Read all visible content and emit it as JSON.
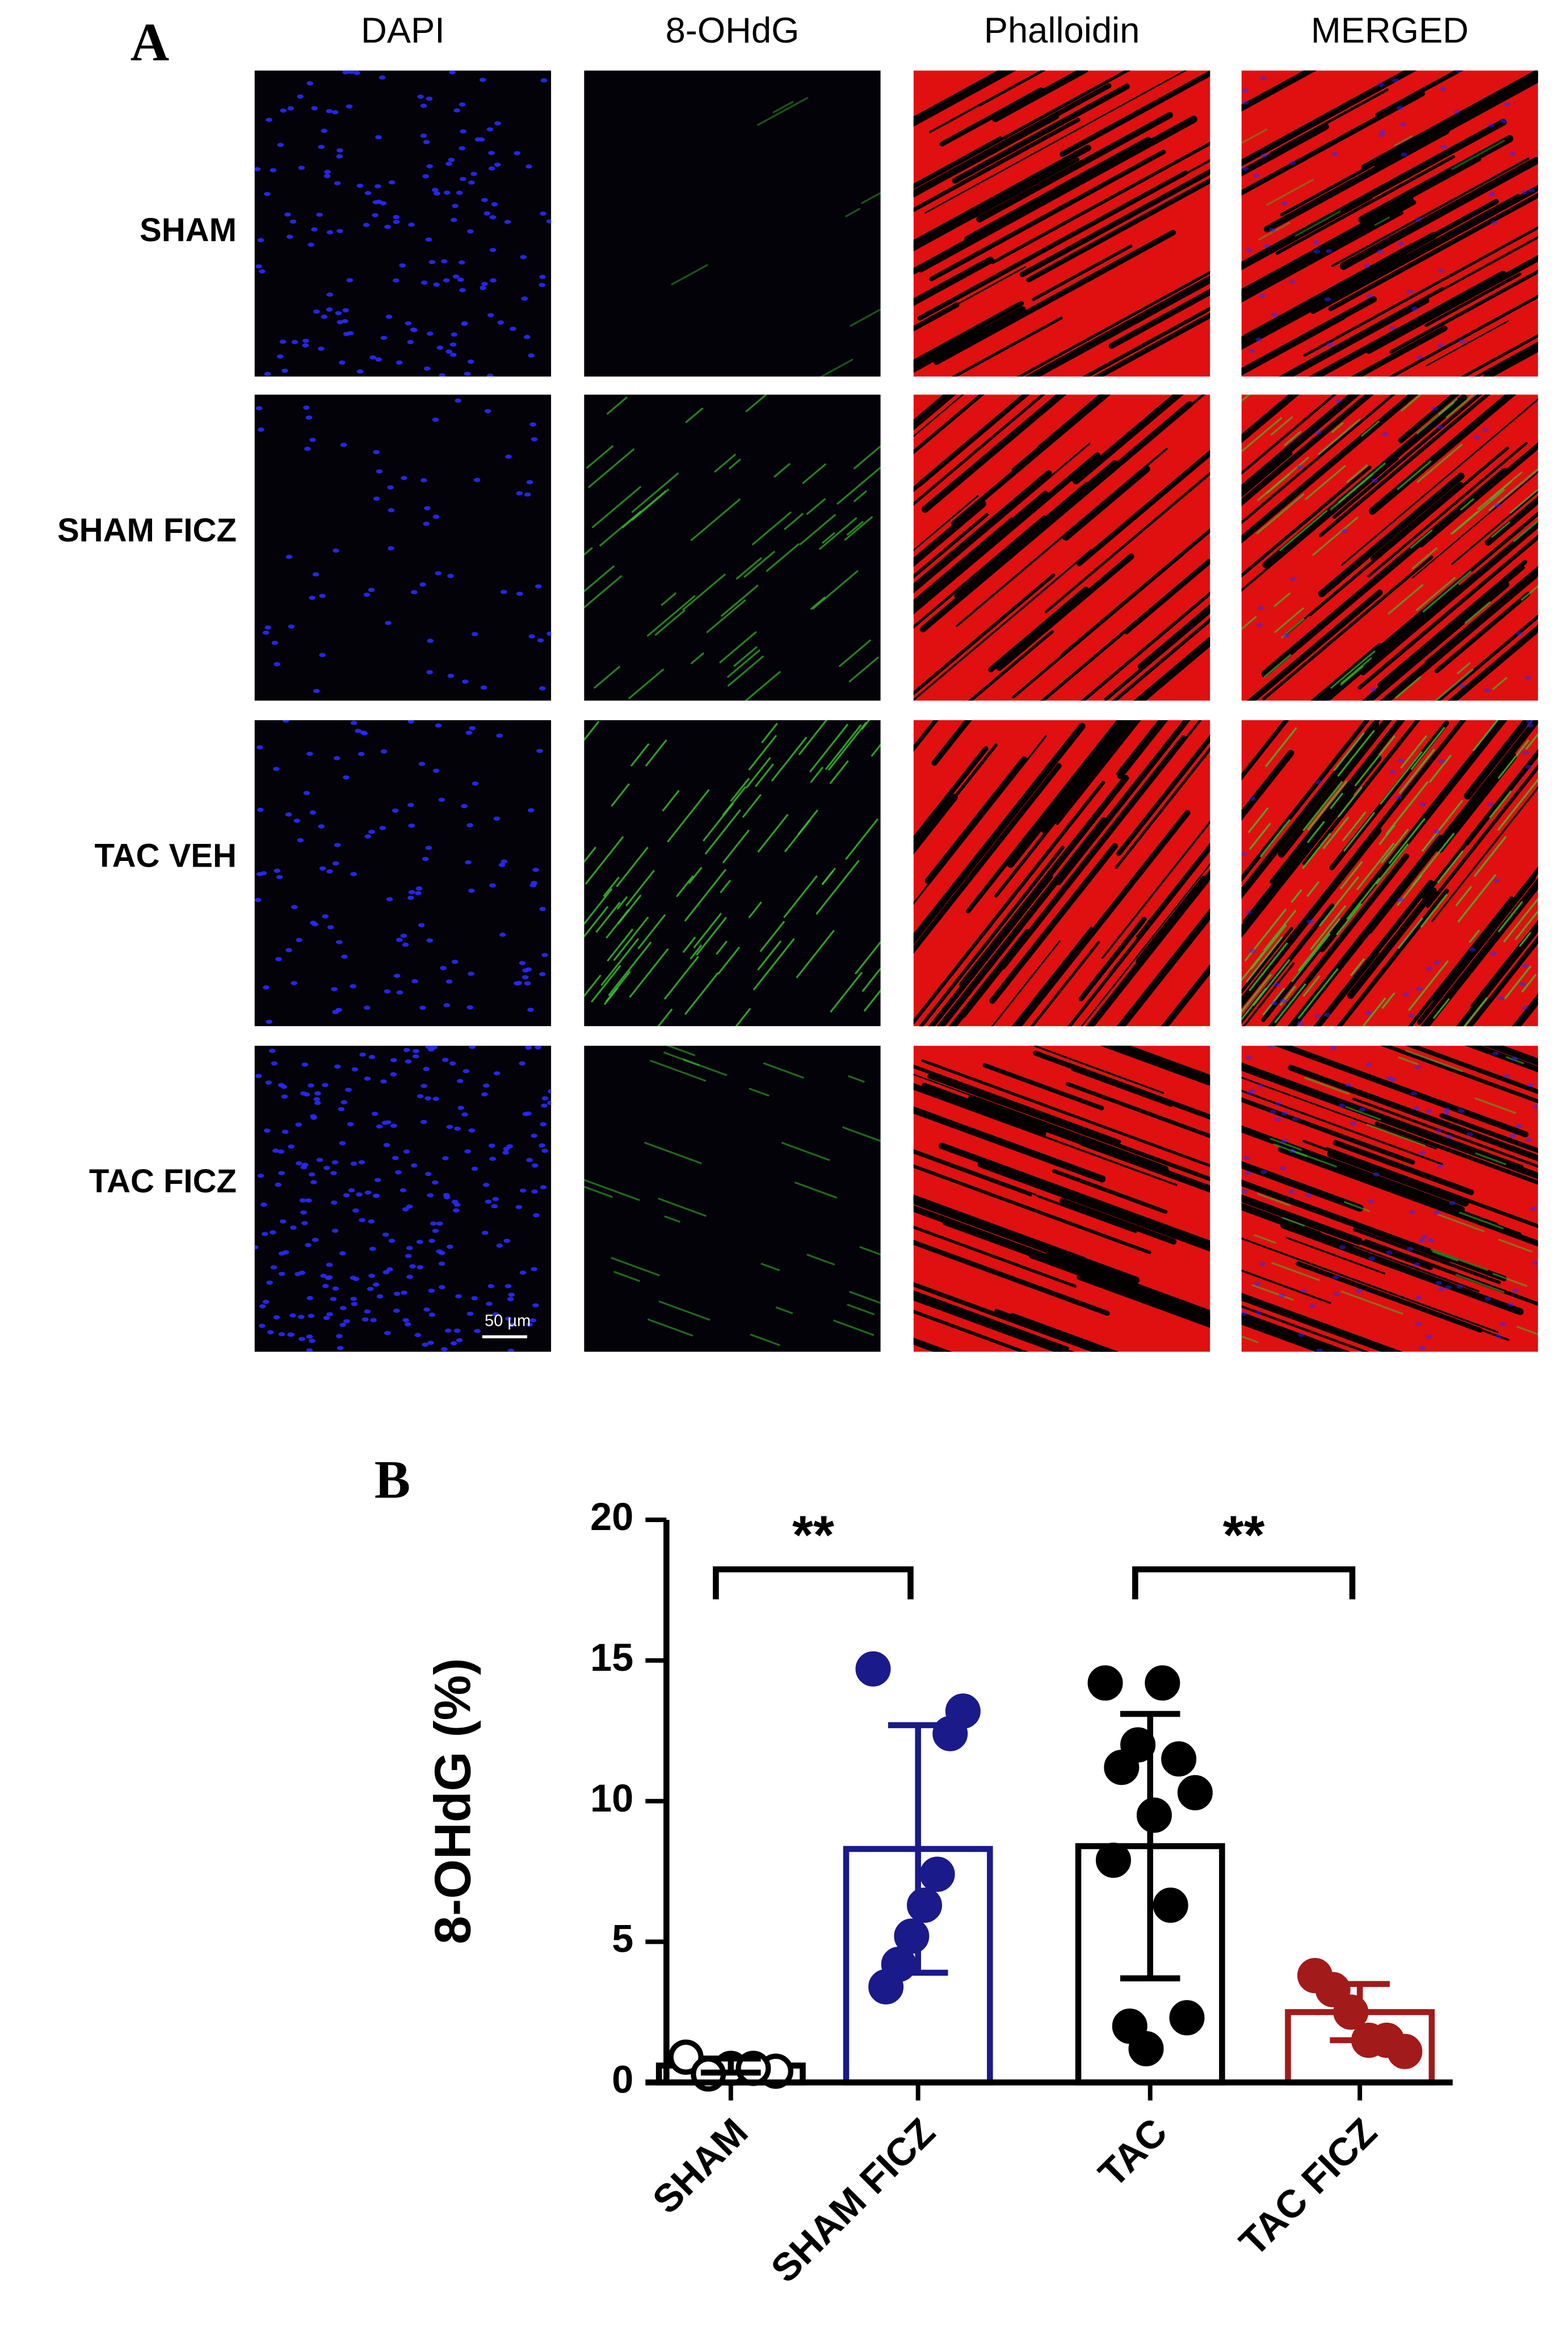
{
  "panel_a": {
    "label": "A",
    "columns": [
      "DAPI",
      "8-OHdG",
      "Phalloidin",
      "MERGED"
    ],
    "rows": [
      "SHAM",
      "SHAM FICZ",
      "TAC VEH",
      "TAC FICZ"
    ],
    "scale_bar": "50 µm"
  },
  "chart_data": {
    "type": "bar",
    "panel_label": "B",
    "ylabel": "8-OHdG (%)",
    "categories": [
      "SHAM",
      "SHAM FICZ",
      "TAC",
      "TAC FICZ"
    ],
    "values": [
      0.6,
      8.3,
      8.4,
      2.5
    ],
    "errors": [
      0.25,
      4.4,
      4.7,
      1.0
    ],
    "points": [
      [
        0.9,
        0.5,
        0.4,
        0.3,
        0.5
      ],
      [
        14.7,
        13.2,
        12.4,
        7.4,
        6.3,
        5.2,
        4.2,
        3.4
      ],
      [
        14.2,
        14.2,
        11.2,
        11.5,
        12.0,
        10.3,
        9.5,
        7.9,
        6.3,
        2.0,
        2.3,
        1.2
      ],
      [
        3.8,
        3.3,
        2.5,
        1.5,
        1.5,
        1.1
      ]
    ],
    "colors": [
      "#000000",
      "#1a1a8a",
      "#000000",
      "#a31a1a"
    ],
    "open_markers": [
      true,
      false,
      false,
      false
    ],
    "ylim": [
      0,
      20
    ],
    "yticks": [
      0,
      5,
      10,
      15,
      20
    ],
    "annotations": [
      {
        "text": "**",
        "from": 0,
        "to": 1
      },
      {
        "text": "**",
        "from": 2,
        "to": 3
      }
    ]
  }
}
